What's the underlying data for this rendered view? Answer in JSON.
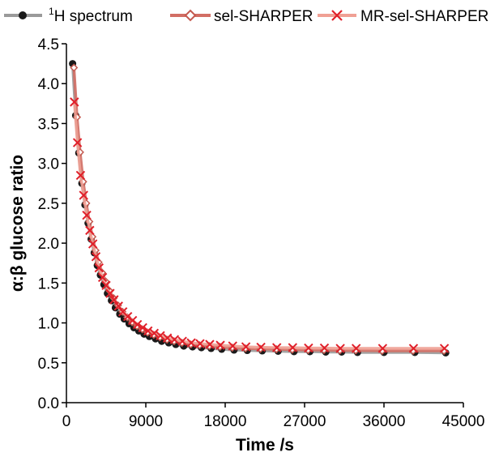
{
  "chart_data": {
    "type": "line",
    "title": "",
    "xlabel": "Time /s",
    "ylabel": "α:β glucose ratio",
    "xlim": [
      0,
      45000
    ],
    "ylim": [
      0,
      4.5
    ],
    "xticks": [
      0,
      9000,
      18000,
      27000,
      36000,
      45000
    ],
    "yticks": [
      0.0,
      0.5,
      1.0,
      1.5,
      2.0,
      2.5,
      3.0,
      3.5,
      4.0,
      4.5
    ],
    "ytick_labels": [
      "0.0",
      "0.5",
      "1.0",
      "1.5",
      "2.0",
      "2.5",
      "3.0",
      "3.5",
      "4.0",
      "4.5"
    ],
    "grid": false,
    "legend_position": "top",
    "series": [
      {
        "name": "1H spectrum",
        "name_sup": "1",
        "name_rest": "H spectrum",
        "marker": "circle",
        "color": "#1a1a1a",
        "line_color": "#9a9a9a",
        "x": [
          700,
          1050,
          1400,
          1750,
          2100,
          2450,
          2800,
          3150,
          3500,
          3850,
          4250,
          4650,
          5100,
          5550,
          6050,
          6550,
          7100,
          7650,
          8200,
          8800,
          9400,
          10100,
          10800,
          11600,
          12400,
          13300,
          14300,
          15300,
          16400,
          17600,
          19000,
          20500,
          22200,
          24000,
          25800,
          27600,
          29400,
          31200,
          33000,
          36000,
          39500,
          43000
        ],
        "y": [
          4.25,
          3.6,
          3.13,
          2.75,
          2.48,
          2.25,
          2.05,
          1.88,
          1.72,
          1.6,
          1.48,
          1.37,
          1.28,
          1.19,
          1.11,
          1.05,
          0.99,
          0.94,
          0.9,
          0.86,
          0.83,
          0.8,
          0.77,
          0.75,
          0.73,
          0.71,
          0.7,
          0.69,
          0.68,
          0.67,
          0.66,
          0.655,
          0.65,
          0.645,
          0.64,
          0.64,
          0.635,
          0.635,
          0.63,
          0.63,
          0.63,
          0.625
        ]
      },
      {
        "name": "sel-SHARPER",
        "marker": "diamond",
        "color": "#c45a50",
        "line_color": "#d26e64",
        "x": [
          850,
          1200,
          1550,
          1900,
          2250,
          2600,
          2950,
          3300,
          3650,
          4050,
          4450,
          4900,
          5350,
          5850,
          6350,
          6900,
          7450,
          8000,
          8600,
          9200,
          9900,
          10600,
          11400,
          12200,
          13100,
          14100,
          15100,
          16200,
          17400,
          18800,
          20300,
          22000,
          23800,
          25600,
          27400,
          29200,
          31000,
          32800,
          35800,
          39300,
          42800
        ],
        "y": [
          4.2,
          3.58,
          3.14,
          2.77,
          2.5,
          2.27,
          2.08,
          1.91,
          1.76,
          1.63,
          1.52,
          1.4,
          1.31,
          1.22,
          1.14,
          1.07,
          1.01,
          0.96,
          0.92,
          0.88,
          0.85,
          0.82,
          0.79,
          0.77,
          0.75,
          0.73,
          0.72,
          0.71,
          0.7,
          0.69,
          0.68,
          0.675,
          0.67,
          0.665,
          0.66,
          0.66,
          0.655,
          0.655,
          0.65,
          0.65,
          0.65
        ]
      },
      {
        "name": "MR-sel-SHARPER",
        "marker": "x",
        "color": "#e0202a",
        "line_color": "#f0a094",
        "x": [
          900,
          1250,
          1600,
          1950,
          2300,
          2650,
          3000,
          3350,
          3700,
          4100,
          4500,
          4950,
          5400,
          5900,
          6400,
          6950,
          7500,
          8050,
          8650,
          9250,
          9950,
          10650,
          11450,
          12250,
          13150,
          14150,
          15150,
          16250,
          17450,
          18850,
          20350,
          22050,
          23850,
          25650,
          27450,
          29250,
          31050,
          32850,
          35850,
          39350,
          42850
        ],
        "y": [
          3.77,
          3.26,
          2.85,
          2.6,
          2.35,
          2.16,
          1.99,
          1.83,
          1.69,
          1.57,
          1.47,
          1.37,
          1.29,
          1.21,
          1.14,
          1.08,
          1.03,
          0.98,
          0.94,
          0.9,
          0.87,
          0.84,
          0.81,
          0.79,
          0.77,
          0.75,
          0.74,
          0.73,
          0.72,
          0.71,
          0.7,
          0.695,
          0.69,
          0.69,
          0.685,
          0.685,
          0.68,
          0.68,
          0.68,
          0.68,
          0.68
        ]
      }
    ]
  }
}
